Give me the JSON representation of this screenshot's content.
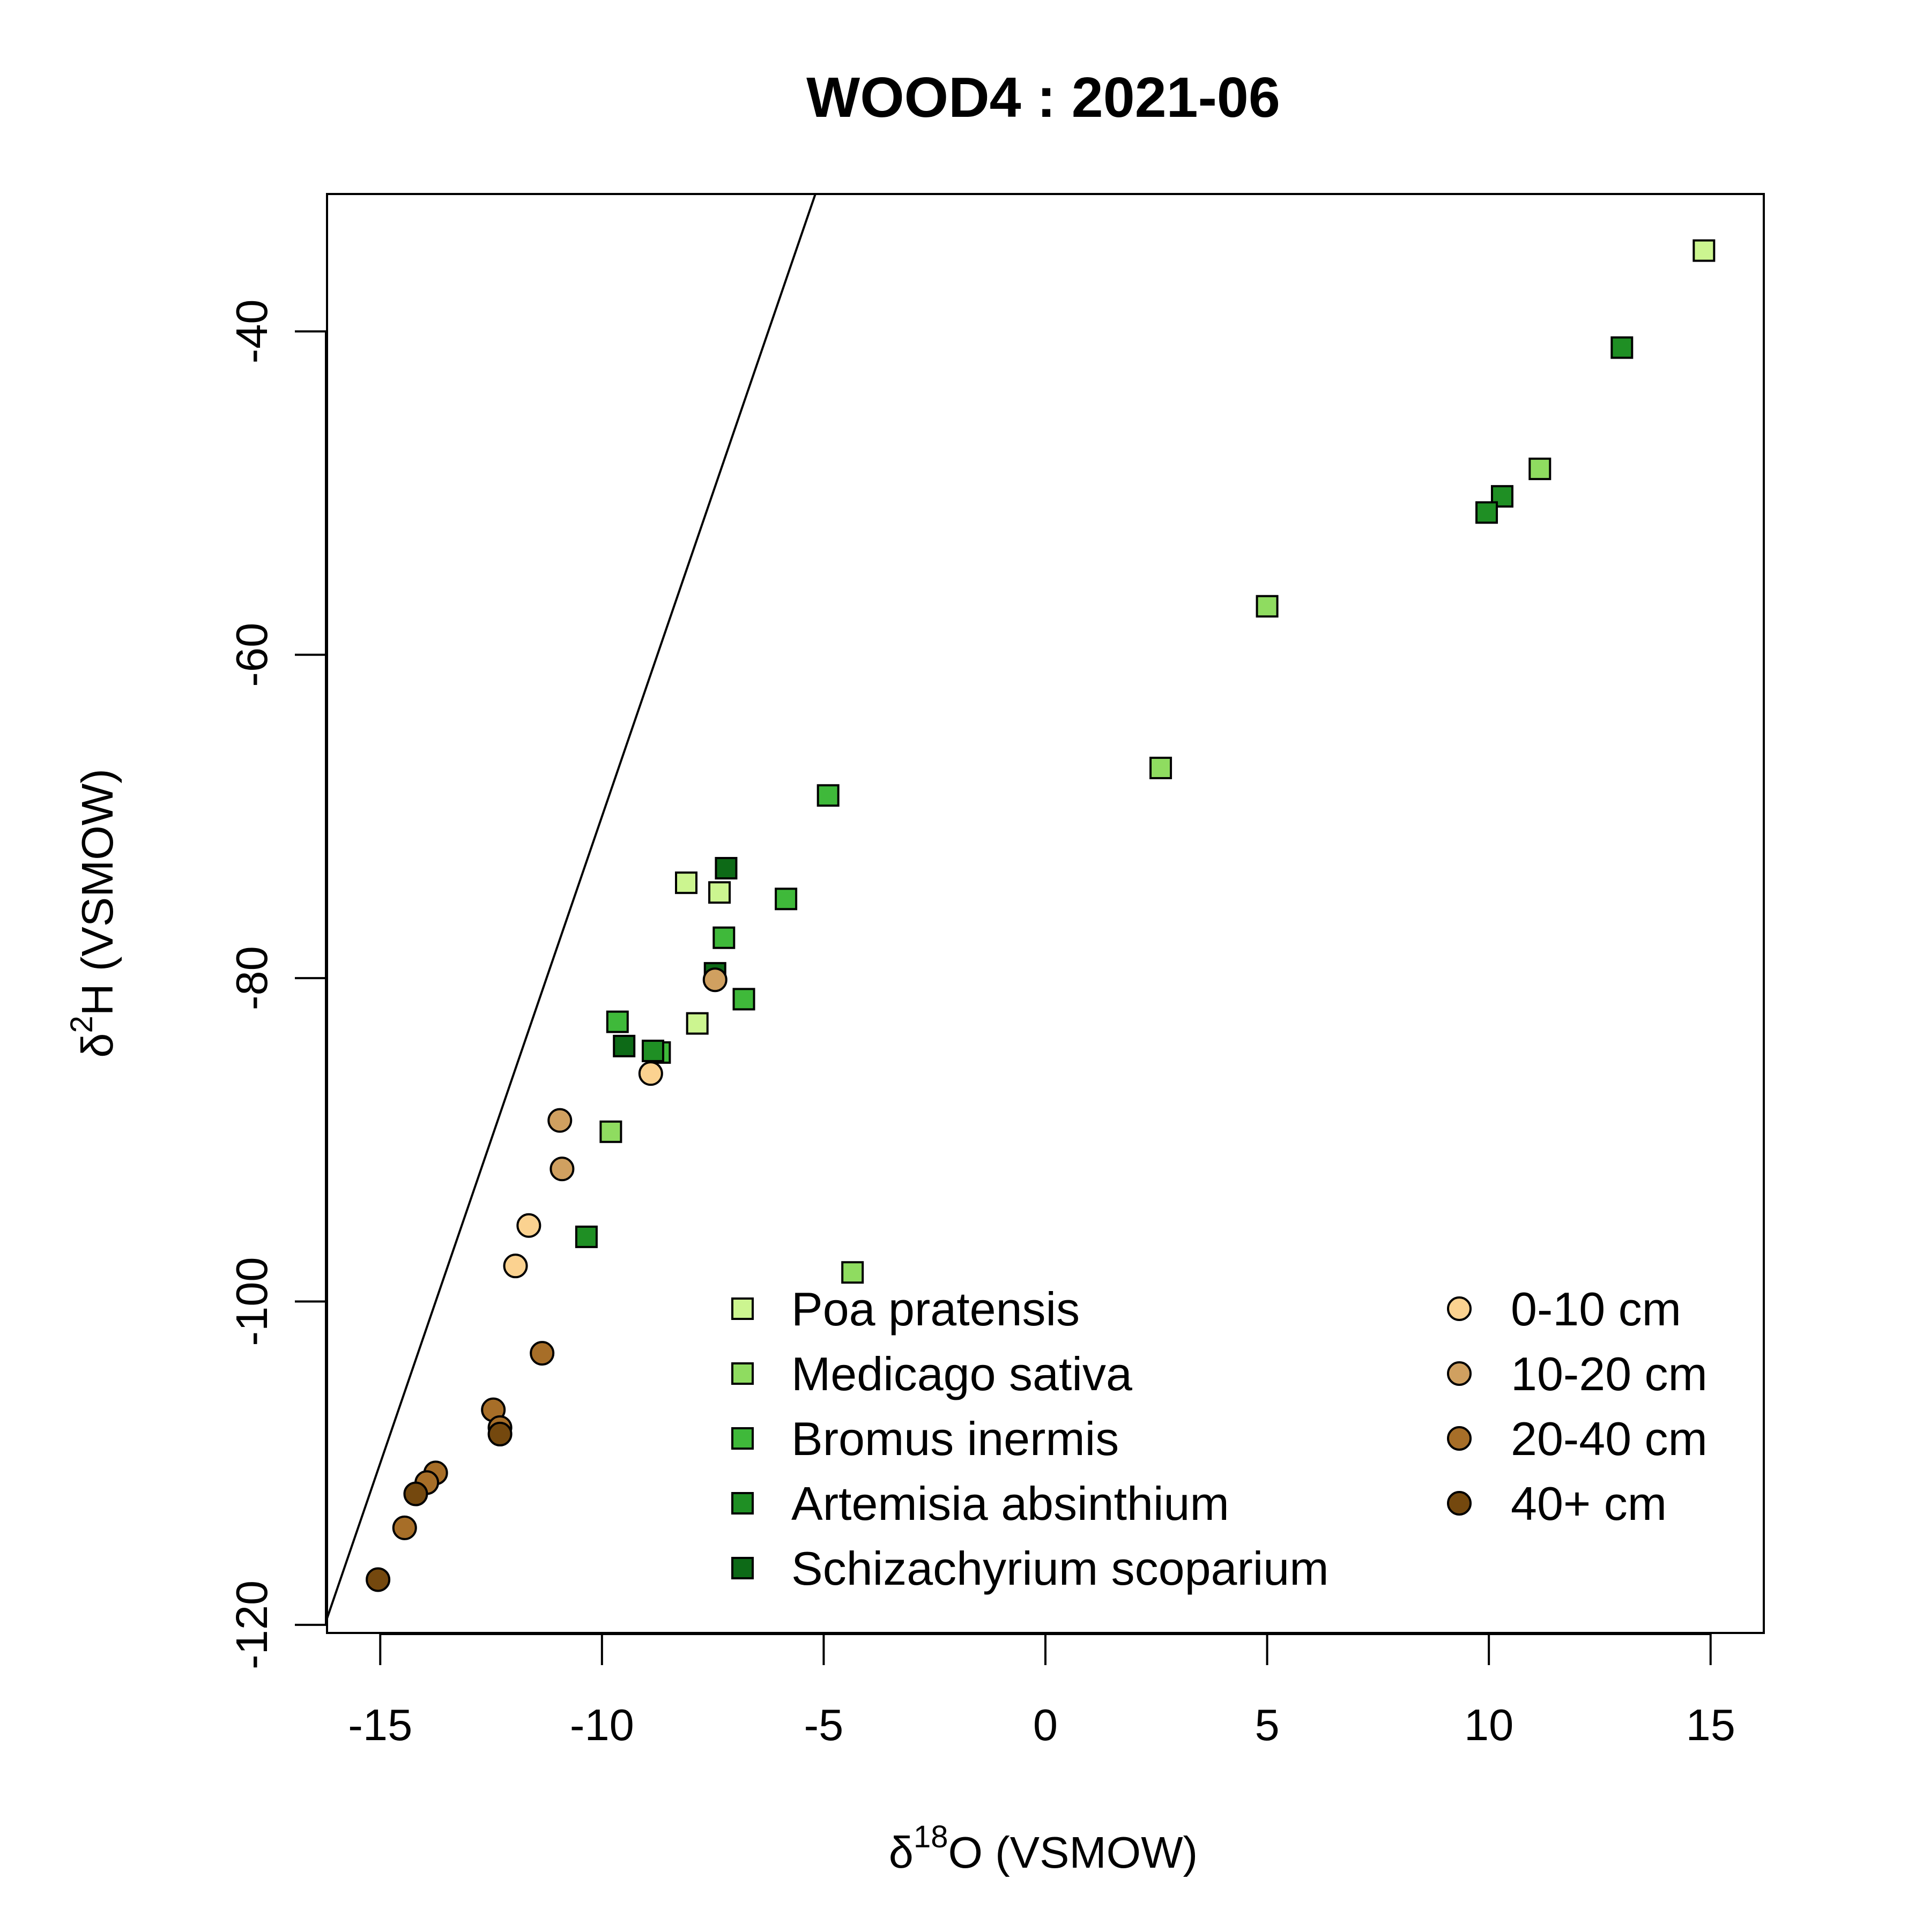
{
  "chart_data": {
    "type": "scatter",
    "title": "WOOD4 : 2021-06",
    "xlabel": {
      "prefix": "δ",
      "sup": "18",
      "main": "O (VSMOW)"
    },
    "ylabel": {
      "prefix": "δ",
      "sup": "2",
      "main": "H (VSMOW)"
    },
    "xlim": [
      -16.2,
      16.2
    ],
    "ylim": [
      -120.5,
      -31.5
    ],
    "xticks": [
      -15,
      -10,
      -5,
      0,
      5,
      10,
      15
    ],
    "xtick_labels": [
      "-15",
      "-10",
      "-5",
      "0",
      "5",
      "10",
      "15"
    ],
    "yticks": [
      -120,
      -100,
      -80,
      -60,
      -40
    ],
    "ytick_labels": [
      "-120",
      "-100",
      "-80",
      "-60",
      "-40"
    ],
    "grid": false,
    "reference_line": {
      "slope": 8,
      "intercept": 10
    },
    "plant_series": [
      {
        "name": "Poa pratensis",
        "color": "#ccf590",
        "points": [
          [
            14.85,
            -35.0
          ],
          [
            -8.1,
            -74.1
          ],
          [
            -7.35,
            -74.7
          ],
          [
            -7.85,
            -82.8
          ]
        ]
      },
      {
        "name": "Medicago sativa",
        "color": "#8fdc60",
        "points": [
          [
            11.15,
            -48.5
          ],
          [
            5.0,
            -57.0
          ],
          [
            2.6,
            -67.0
          ],
          [
            -9.8,
            -89.5
          ],
          [
            -4.35,
            -98.2
          ]
        ]
      },
      {
        "name": "Bromus inermis",
        "color": "#3fb93a",
        "points": [
          [
            -4.9,
            -68.7
          ],
          [
            -5.85,
            -75.1
          ],
          [
            -7.25,
            -77.5
          ],
          [
            -6.8,
            -81.3
          ],
          [
            -9.65,
            -82.7
          ],
          [
            -8.7,
            -84.6
          ]
        ]
      },
      {
        "name": "Artemisia absinthium",
        "color": "#1f8f24",
        "points": [
          [
            13.0,
            -41.0
          ],
          [
            10.3,
            -50.2
          ],
          [
            9.95,
            -51.2
          ],
          [
            -10.35,
            -96.0
          ],
          [
            -8.85,
            -84.5
          ]
        ]
      },
      {
        "name": "Schizachyrium scoparium",
        "color": "#0d6a17",
        "points": [
          [
            -7.2,
            -73.2
          ],
          [
            -7.45,
            -79.7
          ],
          [
            -9.5,
            -84.2
          ]
        ]
      }
    ],
    "depth_series": [
      {
        "name": "0-10 cm",
        "color": "#fbd290",
        "points": [
          [
            -8.9,
            -85.9
          ],
          [
            -11.65,
            -95.3
          ],
          [
            -11.95,
            -97.8
          ]
        ]
      },
      {
        "name": "10-20 cm",
        "color": "#d0a060",
        "points": [
          [
            -7.45,
            -80.1
          ],
          [
            -10.95,
            -88.8
          ],
          [
            -10.9,
            -91.8
          ]
        ]
      },
      {
        "name": "20-40 cm",
        "color": "#a76e28",
        "points": [
          [
            -11.35,
            -103.2
          ],
          [
            -12.45,
            -106.7
          ],
          [
            -12.3,
            -107.8
          ],
          [
            -13.75,
            -110.6
          ],
          [
            -13.95,
            -111.2
          ],
          [
            -14.45,
            -114.0
          ]
        ]
      },
      {
        "name": "40+ cm",
        "color": "#74480e",
        "points": [
          [
            -14.2,
            -111.9
          ],
          [
            -12.3,
            -108.2
          ],
          [
            -15.05,
            -117.2
          ]
        ]
      }
    ],
    "legend_position": "bottom-right"
  }
}
